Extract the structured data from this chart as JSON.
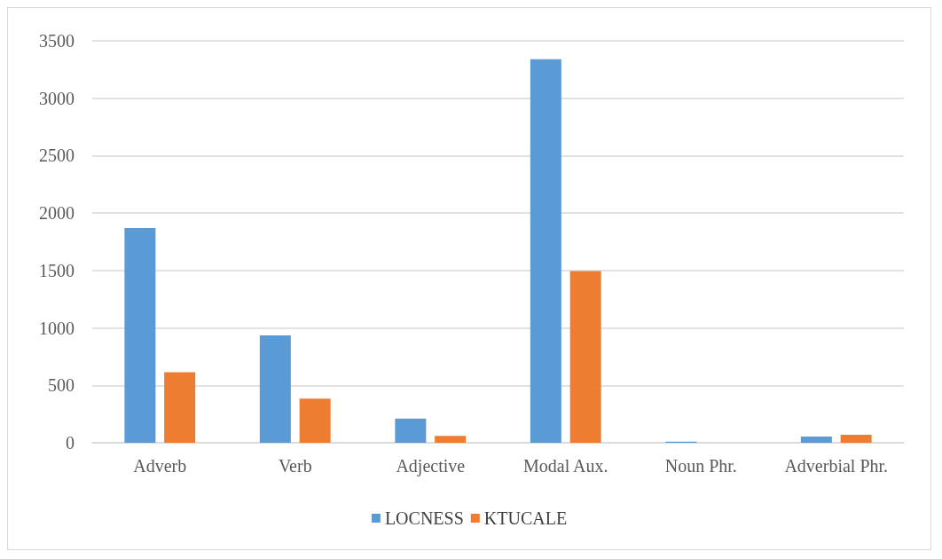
{
  "chart_data": {
    "type": "bar",
    "categories": [
      "Adverb",
      "Verb",
      "Adjective",
      "Modal Aux.",
      "Noun Phr.",
      "Adverbial Phr."
    ],
    "series": [
      {
        "name": "LOCNESS",
        "color": "#5b9bd5",
        "values": [
          1870,
          935,
          210,
          3340,
          10,
          55
        ]
      },
      {
        "name": "KTUCALE",
        "color": "#ed7d31",
        "values": [
          615,
          385,
          60,
          1495,
          0,
          70
        ]
      }
    ],
    "ylim": [
      0,
      3500
    ],
    "yticks": [
      0,
      500,
      1000,
      1500,
      2000,
      2500,
      3000,
      3500
    ],
    "grid": "y",
    "legend": "bottom"
  }
}
